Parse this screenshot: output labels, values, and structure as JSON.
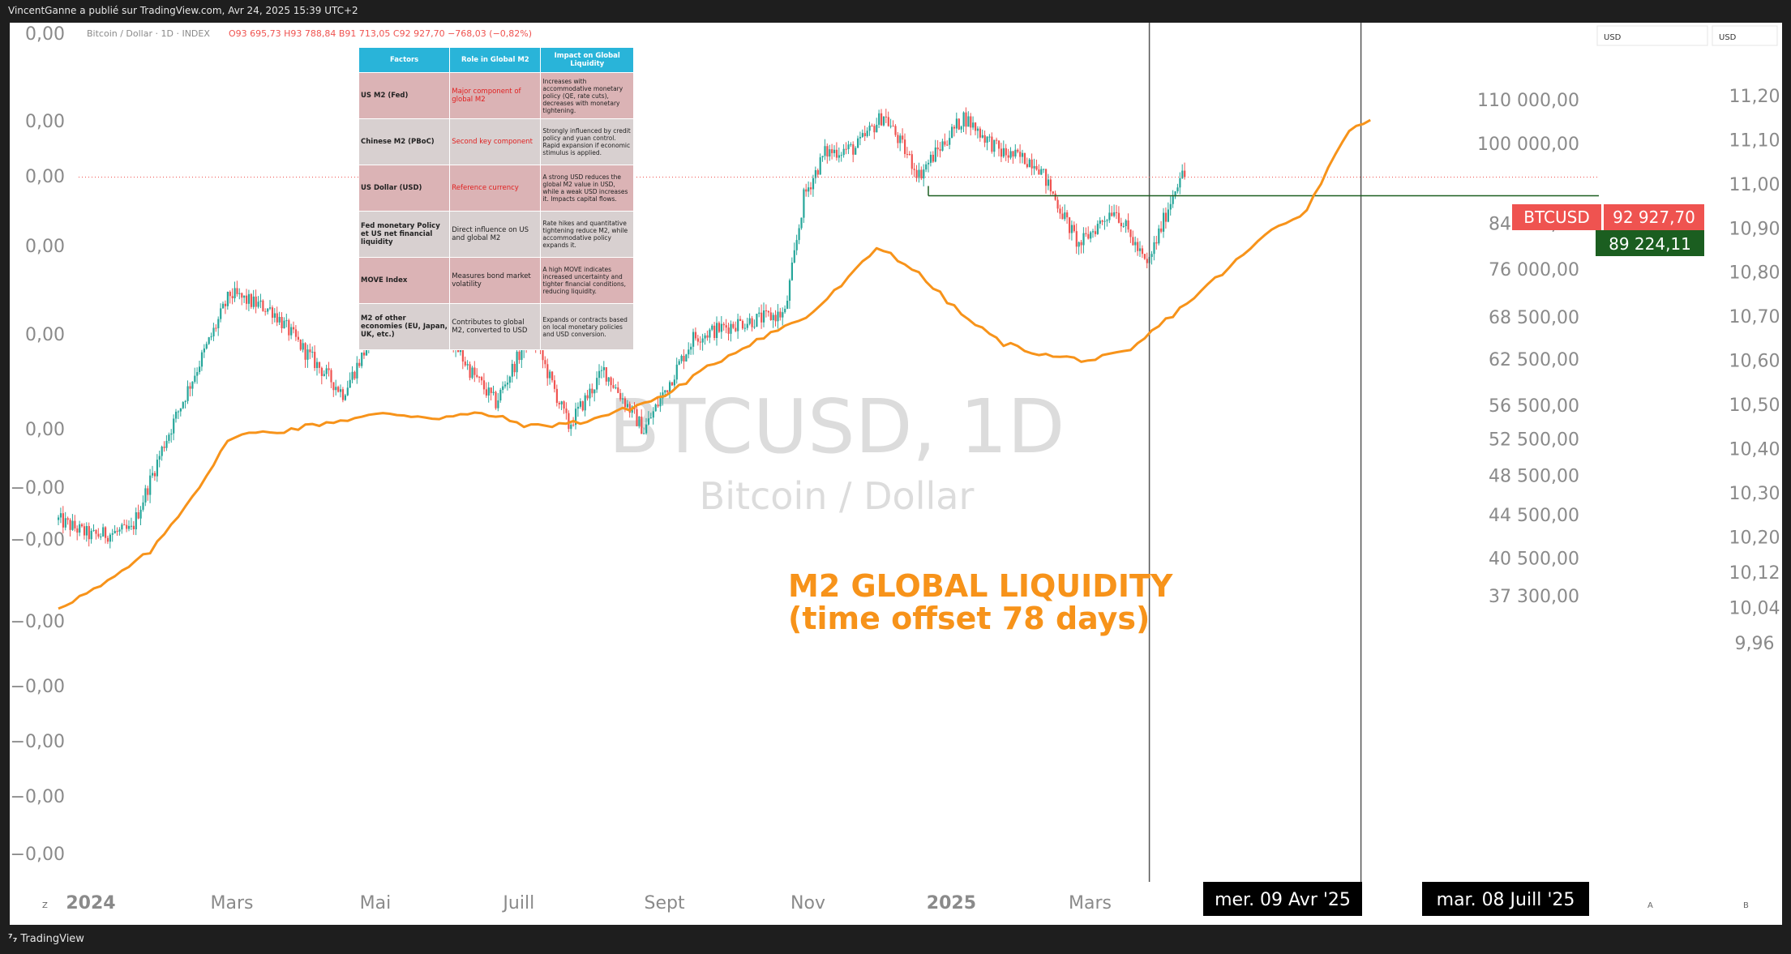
{
  "header": {
    "publisher": "VincentGanne a publié sur TradingView.com, Avr 24, 2025 15:39 UTC+2"
  },
  "legend": {
    "symbol": "Bitcoin / Dollar · 1D · INDEX",
    "ohlc": "O93 695,73  H93 788,84  B91 713,05  C92 927,70  −768,03 (−0,82%)"
  },
  "watermark": {
    "main": "BTCUSD, 1D",
    "sub": "Bitcoin / Dollar"
  },
  "annotation": {
    "line1": "M2 GLOBAL LIQUIDITY",
    "line2": "(time offset 78 days)"
  },
  "currency_boxes": {
    "right_a": "USD",
    "right_b": "USD"
  },
  "price_tags": {
    "btc_label": "BTCUSD",
    "btc_value": "92 927,70",
    "level_value": "89 224,11"
  },
  "date_markers": {
    "d1": "mer. 09 Avr '25",
    "d2": "mar. 08 Juill '25"
  },
  "bottom": {
    "brand": "TradingView",
    "z_btn": "Z",
    "a_btn": "A",
    "b_btn": "B"
  },
  "colors": {
    "up": "#26a69a",
    "down": "#ef5350",
    "m2": "#f7931a",
    "btc_tag": "#ef5350",
    "level": "#1b5e20",
    "axis_text": "#8a8a8a",
    "table_header": "#29b4d9"
  },
  "table": {
    "headers": [
      "Factors",
      "Role in Global M2",
      "Impact on Global Liquidity"
    ],
    "rows": [
      {
        "factor": "US M2 (Fed)",
        "role": "Major component of global M2",
        "impact": "Increases with accommodative monetary policy (QE, rate cuts), decreases with monetary tightening."
      },
      {
        "factor": "Chinese M2 (PBoC)",
        "role": "Second key component",
        "impact": "Strongly influenced by credit policy and yuan control. Rapid expansion if economic stimulus is applied."
      },
      {
        "factor": "US Dollar (USD)",
        "role": "Reference currency",
        "impact": "A strong USD reduces the global M2 value in USD, while a weak USD increases it. Impacts capital flows."
      },
      {
        "factor": "Fed  monetary Policy et US net financial liquidity",
        "role": "Direct influence on US and global M2",
        "impact": "Rate hikes and quantitative tightening reduce M2, while accommodative policy expands it."
      },
      {
        "factor": "MOVE Index",
        "role": "Measures bond market volatility",
        "impact": "A high MOVE indicates increased uncertainty and tighter financial conditions, reducing liquidity."
      },
      {
        "factor": "M2 of other economies (EU, Japan, UK, etc.)",
        "role": "Contributes to global M2, converted to USD",
        "impact": "Expands or contracts based on local monetary policies and USD conversion."
      }
    ]
  },
  "chart_data": {
    "type": "line",
    "title": "",
    "x_ticks": [
      "2024",
      "Mars",
      "Mai",
      "Juill",
      "Sept",
      "Nov",
      "2025",
      "Mars"
    ],
    "left_axis_ticks": [
      "0,00",
      "0,00",
      "0,00",
      "0,00",
      "0,00",
      "0,00",
      "−0,00",
      "−0,00",
      "−0,00",
      "−0,00",
      "−0,00",
      "−0,00",
      "−0,00"
    ],
    "price_axis_ticks": [
      "110 000,00",
      "100 000,00",
      "84 000,00",
      "76 000,00",
      "68 500,00",
      "62 500,00",
      "56 500,00",
      "52 500,00",
      "48 500,00",
      "44 500,00",
      "40 500,00",
      "37 300,00"
    ],
    "m2_axis_ticks": [
      "11,20",
      "11,10",
      "11,00",
      "10,90",
      "10,80",
      "10,70",
      "10,60",
      "10,50",
      "10,40",
      "10,30",
      "10,20",
      "10,12",
      "10,04",
      "9,96"
    ],
    "series": [
      {
        "name": "BTCUSD",
        "dates": [
          "2024-01-01",
          "2024-01-15",
          "2024-02-01",
          "2024-02-15",
          "2024-03-01",
          "2024-03-14",
          "2024-04-01",
          "2024-04-15",
          "2024-05-01",
          "2024-05-20",
          "2024-06-07",
          "2024-06-24",
          "2024-07-05",
          "2024-07-20",
          "2024-08-05",
          "2024-08-20",
          "2024-09-06",
          "2024-09-27",
          "2024-10-15",
          "2024-11-05",
          "2024-11-13",
          "2024-11-22",
          "2024-12-05",
          "2024-12-17",
          "2025-01-01",
          "2025-01-20",
          "2025-02-05",
          "2025-02-20",
          "2025-03-10",
          "2025-03-25",
          "2025-04-08",
          "2025-04-15",
          "2025-04-22",
          "2025-04-24"
        ],
        "values": [
          44000,
          42500,
          43000,
          52000,
          62000,
          72000,
          69500,
          63500,
          58000,
          70000,
          70500,
          61000,
          56800,
          66500,
          54000,
          61000,
          53500,
          65500,
          67500,
          69000,
          89000,
          98000,
          99000,
          106500,
          93400,
          106000,
          98000,
          96000,
          80000,
          87000,
          76500,
          84500,
          93500,
          92927.7
        ]
      },
      {
        "name": "M2 GLOBAL LIQUIDITY",
        "dates": [
          "2024-01-01",
          "2024-01-20",
          "2024-02-10",
          "2024-02-28",
          "2024-03-15",
          "2024-04-05",
          "2024-04-25",
          "2024-05-20",
          "2024-06-10",
          "2024-06-30",
          "2024-07-20",
          "2024-08-10",
          "2024-08-30",
          "2024-09-15",
          "2024-10-05",
          "2024-10-25",
          "2024-11-15",
          "2024-12-01",
          "2024-12-15",
          "2024-12-31",
          "2025-01-20",
          "2025-02-05",
          "2025-02-25",
          "2025-03-15",
          "2025-04-01",
          "2025-04-09",
          "2025-04-25",
          "2025-05-15",
          "2025-06-01",
          "2025-06-15",
          "2025-06-30",
          "2025-07-08",
          "2025-07-14"
        ],
        "values": [
          10.04,
          10.09,
          10.17,
          10.3,
          10.43,
          10.44,
          10.46,
          10.48,
          10.47,
          10.48,
          10.45,
          10.46,
          10.49,
          10.52,
          10.59,
          10.65,
          10.7,
          10.78,
          10.86,
          10.8,
          10.7,
          10.64,
          10.61,
          10.6,
          10.62,
          10.66,
          10.73,
          10.82,
          10.9,
          10.94,
          11.1,
          11.14,
          11.15
        ]
      }
    ],
    "level_line": 89224.11,
    "vertical_markers": [
      "2025-04-09",
      "2025-07-08"
    ],
    "grid": false,
    "legend_position": "top-left"
  }
}
